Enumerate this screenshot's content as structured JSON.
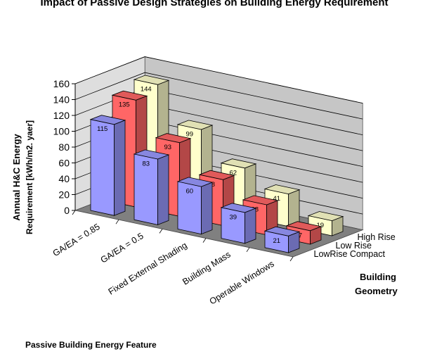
{
  "chart_data": {
    "type": "bar",
    "chart_title": "Impact of Passive Design Strategies on Building Energy Requirement",
    "ylabel_line1": "Annual H&C Energy",
    "ylabel_line2": "Requirement [kWh/m2. yaer]",
    "xlabel": "Passive Building Energy Feature",
    "zlabel_line1": "Building",
    "zlabel_line2": "Geometry",
    "ylim": [
      0,
      160
    ],
    "yticks": [
      "0",
      "20",
      "40",
      "60",
      "80",
      "100",
      "120",
      "140",
      "160"
    ],
    "categories": [
      "GA/EA = 0.85",
      "GA/EA = 0.5",
      "Fixed External Shading",
      "Building Mass",
      "Operable Windows"
    ],
    "series": [
      {
        "name": "LowRise Compact",
        "values": [
          115,
          83,
          60,
          39,
          21
        ],
        "color": "#9999ff"
      },
      {
        "name": "Low Rise",
        "values": [
          135,
          93,
          58,
          38,
          17
        ],
        "color": "#ff6666"
      },
      {
        "name": "High Rise",
        "values": [
          144,
          99,
          62,
          41,
          19
        ],
        "color": "#ffffcc"
      }
    ],
    "grid": true
  }
}
